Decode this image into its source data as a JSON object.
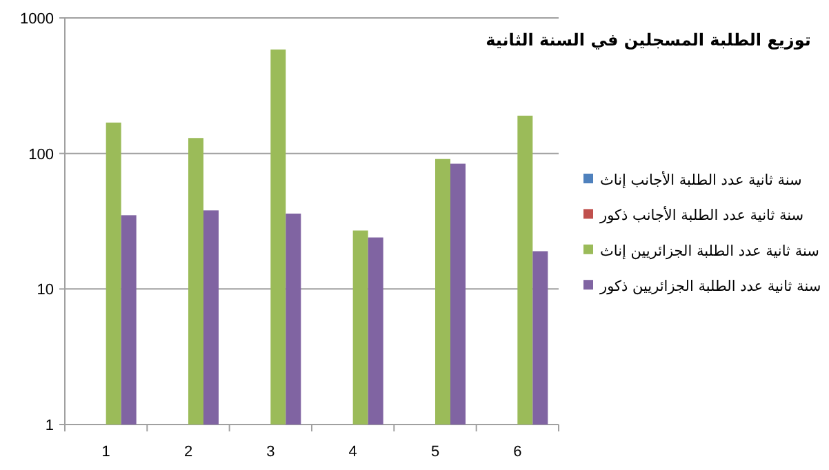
{
  "chart_data": {
    "type": "bar",
    "title": "توزيع الطلبة المسجلين في السنة الثانية",
    "categories": [
      "1",
      "2",
      "3",
      "4",
      "5",
      "6"
    ],
    "series": [
      {
        "name": "سنة ثانية عدد الطلبة الأجانب إناث",
        "color": "#4f81bd",
        "values": [
          null,
          null,
          null,
          null,
          null,
          null
        ]
      },
      {
        "name": "سنة ثانية عدد الطلبة الأجانب ذكور",
        "color": "#c0504d",
        "values": [
          null,
          null,
          null,
          null,
          null,
          null
        ]
      },
      {
        "name": "سنة ثانية عدد الطلبة الجزائريين إناث",
        "color": "#9bbb59",
        "values": [
          169,
          130,
          585,
          27,
          91,
          190
        ]
      },
      {
        "name": "سنة ثانية عدد الطلبة الجزائريين ذكور",
        "color": "#8064a2",
        "values": [
          35,
          38,
          36,
          24,
          84,
          19
        ]
      }
    ],
    "log": "y",
    "ylim": [
      1,
      1000
    ],
    "yticks": [
      1,
      10,
      100,
      1000
    ],
    "grid": "y",
    "legend": "right"
  }
}
